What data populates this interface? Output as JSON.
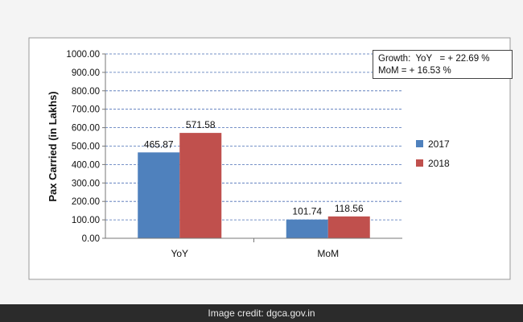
{
  "chart_data": {
    "type": "bar",
    "categories": [
      "YoY",
      "MoM"
    ],
    "series": [
      {
        "name": "2017",
        "values": [
          465.87,
          101.74
        ],
        "color": "#4f81bd"
      },
      {
        "name": "2018",
        "values": [
          571.58,
          118.56
        ],
        "color": "#c0504d"
      }
    ],
    "data_labels": [
      [
        "465.87",
        "101.74"
      ],
      [
        "571.58",
        "118.56"
      ]
    ],
    "ylabel": "Pax Carried (in Lakhs)",
    "ylim": [
      0,
      1000
    ],
    "yticks": [
      0,
      100,
      200,
      300,
      400,
      500,
      600,
      700,
      800,
      900,
      1000
    ],
    "ytick_labels": [
      "0.00",
      "100.00",
      "200.00",
      "300.00",
      "400.00",
      "500.00",
      "600.00",
      "700.00",
      "800.00",
      "900.00",
      "1000.00"
    ],
    "grid": "horizontal dashed",
    "legend_position": "right",
    "annotation": {
      "line1": "Growth:  YoY   = + 22.69 %",
      "line2": "MoM = + 16.53 %"
    }
  },
  "footer": {
    "credit": "Image credit: dgca.gov.in"
  }
}
